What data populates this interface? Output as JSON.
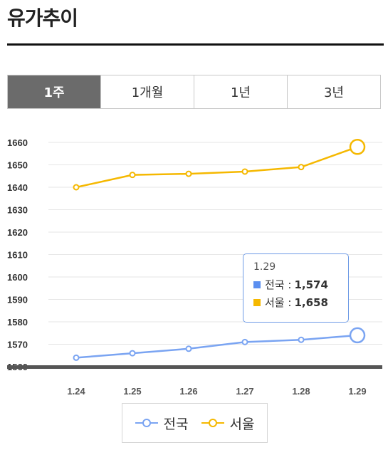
{
  "page": {
    "title": "유가추이"
  },
  "tabs": [
    {
      "label": "1주",
      "active": true
    },
    {
      "label": "1개월",
      "active": false
    },
    {
      "label": "1년",
      "active": false
    },
    {
      "label": "3년",
      "active": false
    }
  ],
  "tooltip": {
    "date": "1.29",
    "rows": [
      {
        "name": "전국",
        "label": "전국 :",
        "value": "1,574",
        "color": "#5b8ff0"
      },
      {
        "name": "서울",
        "label": "서울 :",
        "value": "1,658",
        "color": "#f5b800"
      }
    ]
  },
  "legend": [
    {
      "name": "전국",
      "color": "#7aa4f2"
    },
    {
      "name": "서울",
      "color": "#f5b800"
    }
  ],
  "chart_data": {
    "type": "line",
    "categories": [
      "1.24",
      "1.25",
      "1.26",
      "1.27",
      "1.28",
      "1.29"
    ],
    "series": [
      {
        "name": "전국",
        "color": "#7aa4f2",
        "values": [
          1564,
          1566,
          1568,
          1571,
          1572,
          1574
        ]
      },
      {
        "name": "서울",
        "color": "#f5b800",
        "values": [
          1640,
          1645.5,
          1646,
          1647,
          1649,
          1658
        ]
      }
    ],
    "ylim": [
      1560,
      1660
    ],
    "yticks": [
      1560,
      1570,
      1580,
      1590,
      1600,
      1610,
      1620,
      1630,
      1640,
      1650,
      1660
    ],
    "grid": true,
    "highlight_index": 5,
    "legend_position": "bottom"
  }
}
